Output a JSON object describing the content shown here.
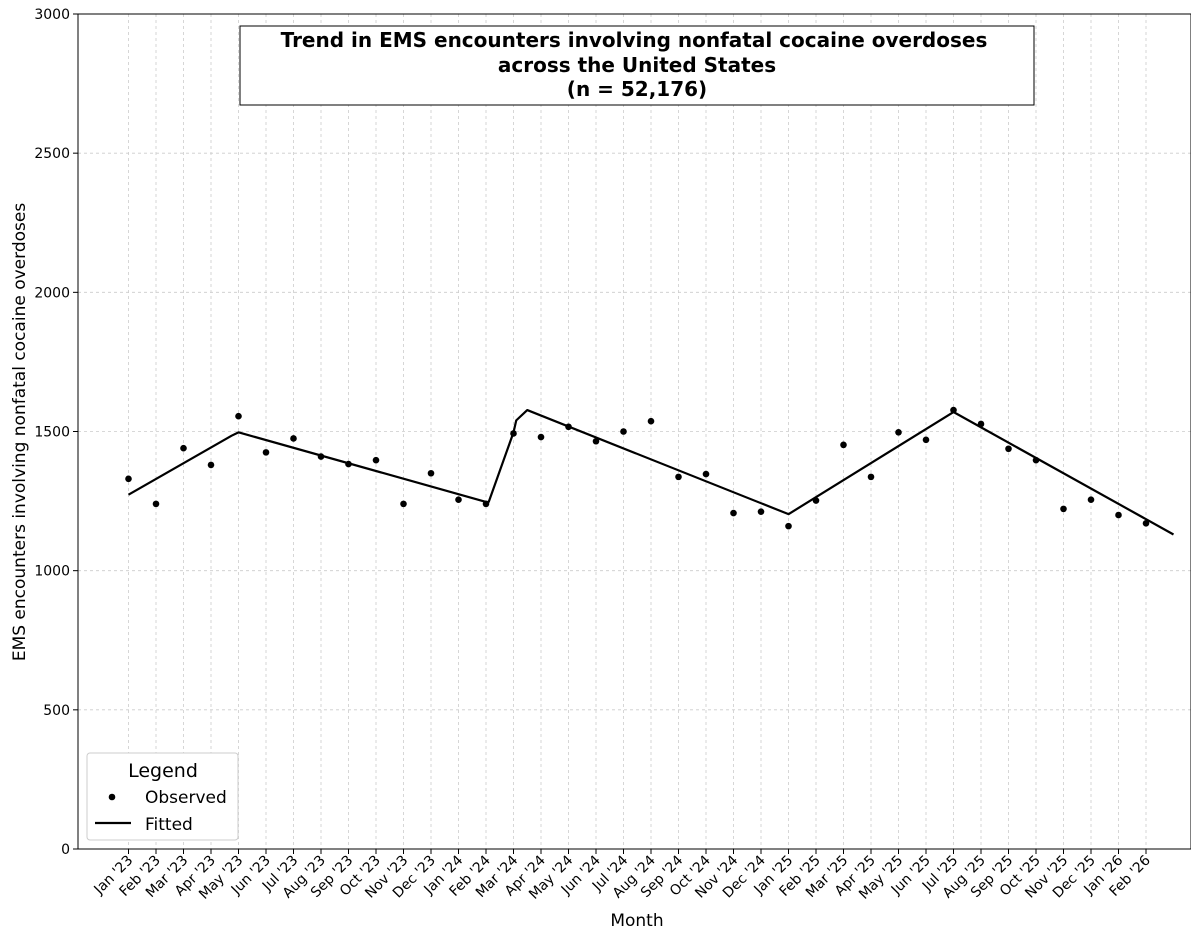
{
  "chart_data": {
    "type": "scatter",
    "title_lines": [
      "Trend in EMS encounters involving nonfatal cocaine overdoses",
      "across the United States",
      "(n = 52,176)"
    ],
    "xlabel": "Month",
    "ylabel": "EMS encounters involving nonfatal cocaine overdoses",
    "ylim": [
      0,
      3000
    ],
    "yticks": [
      0,
      500,
      1000,
      1500,
      2000,
      2500,
      3000
    ],
    "grid": true,
    "legend": {
      "title": "Legend",
      "placement": "lower-left",
      "entries": [
        "Observed",
        "Fitted"
      ]
    },
    "categories": [
      "Jan '23",
      "Feb '23",
      "Mar '23",
      "Apr '23",
      "May '23",
      "Jun '23",
      "Jul '23",
      "Aug '23",
      "Sep '23",
      "Oct '23",
      "Nov '23",
      "Dec '23",
      "Jan '24",
      "Feb '24",
      "Mar '24",
      "Apr '24",
      "May '24",
      "Jun '24",
      "Jul '24",
      "Aug '24",
      "Sep '24",
      "Oct '24",
      "Nov '24",
      "Dec '24",
      "Jan '25",
      "Feb '25",
      "Mar '25",
      "Apr '25",
      "May '25",
      "Jun '25",
      "Jul '25",
      "Aug '25",
      "Sep '25",
      "Oct '25",
      "Nov '25",
      "Dec '25",
      "Jan '26",
      "Feb '26"
    ],
    "series": [
      {
        "name": "Observed",
        "type": "scatter",
        "values": [
          1330,
          1240,
          1440,
          1380,
          1555,
          1425,
          1475,
          1410,
          1383,
          1397,
          1240,
          1350,
          1255,
          1240,
          1493,
          1480,
          1517,
          1465,
          1500,
          1537,
          1337,
          1347,
          1207,
          1212,
          1160,
          1252,
          1452,
          1337,
          1497,
          1470,
          1577,
          1527,
          1438,
          1397,
          1222,
          1255,
          1200,
          1170
        ]
      },
      {
        "name": "Fitted",
        "type": "line",
        "x": [
          0,
          3.75,
          4,
          13,
          13.1,
          14,
          14.1,
          14.5,
          24,
          30,
          38
        ],
        "values": [
          1273,
          1485,
          1497,
          1247,
          1247,
          1497,
          1540,
          1577,
          1203,
          1570,
          1130
        ]
      }
    ]
  }
}
